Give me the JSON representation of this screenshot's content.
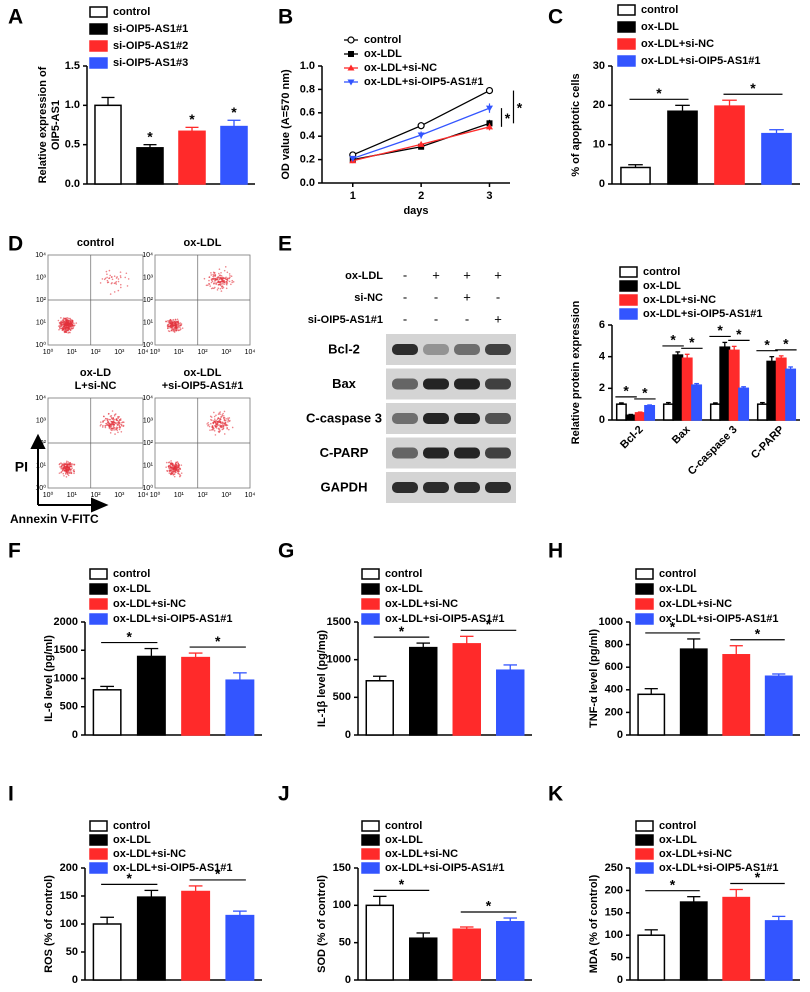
{
  "chart_data": [
    {
      "letter": "A",
      "type": "bar",
      "y_label": [
        "Relative expression of",
        "OIP5-AS1"
      ],
      "ylim": [
        0,
        1.5
      ],
      "yticks": [
        {
          "value": 0,
          "label": "0.0"
        },
        {
          "value": 0.5,
          "label": "0.5"
        },
        {
          "value": 1,
          "label": "1.0"
        },
        {
          "value": 1.5,
          "label": "1.5"
        }
      ],
      "series": [
        {
          "name": "control",
          "color": "#ffffff",
          "values": [
            1.0
          ],
          "errors": [
            0.1
          ]
        },
        {
          "name": "si-OIP5-AS1#1",
          "color": "#000000",
          "values": [
            0.46
          ],
          "errors": [
            0.04
          ]
        },
        {
          "name": "si-OIP5-AS1#2",
          "color": "#ff2a2a",
          "values": [
            0.67
          ],
          "errors": [
            0.05
          ]
        },
        {
          "name": "si-OIP5-AS1#3",
          "color": "#3355ff",
          "values": [
            0.73
          ],
          "errors": [
            0.08
          ]
        }
      ],
      "comparisons": [
        {
          "label": "*",
          "between": [
            "si-OIP5-AS1#1"
          ]
        },
        {
          "label": "*",
          "between": [
            "si-OIP5-AS1#2"
          ]
        },
        {
          "label": "*",
          "between": [
            "si-OIP5-AS1#3"
          ]
        }
      ]
    },
    {
      "letter": "B",
      "type": "line",
      "y_label": [
        "OD value (A=570 nm)"
      ],
      "x_label": "days",
      "x": [
        1,
        2,
        3
      ],
      "xlim": [
        0.55,
        3.3
      ],
      "xticks": [
        1,
        2,
        3
      ],
      "ylim": [
        0,
        1.0
      ],
      "yticks": [
        {
          "value": 0,
          "label": "0.0"
        },
        {
          "value": 0.2,
          "label": "0.2"
        },
        {
          "value": 0.4,
          "label": "0.4"
        },
        {
          "value": 0.6,
          "label": "0.6"
        },
        {
          "value": 0.8,
          "label": "0.8"
        },
        {
          "value": 1,
          "label": "1.0"
        }
      ],
      "series": [
        {
          "name": "control",
          "color": "#000000",
          "marker": "circle-open",
          "values": [
            0.24,
            0.49,
            0.79
          ],
          "errors": [
            0.02,
            0.03,
            0.03
          ]
        },
        {
          "name": "ox-LDL",
          "color": "#000000",
          "marker": "square",
          "values": [
            0.2,
            0.31,
            0.51
          ],
          "errors": [
            0.02,
            0.02,
            0.03
          ]
        },
        {
          "name": "ox-LDL+si-NC",
          "color": "#ff2a2a",
          "marker": "triangle",
          "values": [
            0.19,
            0.33,
            0.48
          ],
          "errors": [
            0.02,
            0.02,
            0.03
          ]
        },
        {
          "name": "ox-LDL+si-OIP5-AS1#1",
          "color": "#3355ff",
          "marker": "triangle-down",
          "values": [
            0.21,
            0.41,
            0.64
          ],
          "errors": [
            0.02,
            0.03,
            0.04
          ]
        }
      ],
      "comparisons": [
        {
          "label": "*",
          "between": [
            "ox-LDL+si-NC",
            "ox-LDL+si-OIP5-AS1#1"
          ]
        },
        {
          "label": "*",
          "between": [
            "ox-LDL",
            "control"
          ]
        }
      ]
    },
    {
      "letter": "C",
      "type": "bar",
      "y_label": [
        "% of apoptotic cells"
      ],
      "ylim": [
        0,
        30
      ],
      "yticks": [
        0,
        10,
        20,
        30
      ],
      "series": [
        {
          "name": "control",
          "color": "#ffffff",
          "values": [
            4.2
          ],
          "errors": [
            0.7
          ]
        },
        {
          "name": "ox-LDL",
          "color": "#000000",
          "values": [
            18.5
          ],
          "errors": [
            1.5
          ]
        },
        {
          "name": "ox-LDL+si-NC",
          "color": "#ff2a2a",
          "values": [
            19.8
          ],
          "errors": [
            1.5
          ]
        },
        {
          "name": "ox-LDL+si-OIP5-AS1#1",
          "color": "#3355ff",
          "values": [
            12.8
          ],
          "errors": [
            1.0
          ]
        }
      ],
      "comparisons": [
        {
          "label": "*",
          "between": [
            "control",
            "ox-LDL"
          ]
        },
        {
          "label": "*",
          "between": [
            "ox-LDL+si-NC",
            "ox-LDL+si-OIP5-AS1#1"
          ]
        }
      ]
    },
    {
      "letter": null,
      "type": "bar",
      "y_label": [
        "Relative protein expression"
      ],
      "ylim": [
        0,
        6
      ],
      "yticks": [
        0,
        2,
        4,
        6
      ],
      "categories": [
        "Bcl-2",
        "Bax",
        "C-caspase 3",
        "C-PARP"
      ],
      "series": [
        {
          "name": "control",
          "color": "#ffffff",
          "values": [
            1.0,
            1.0,
            1.0,
            1.0
          ],
          "errors": [
            0.08,
            0.1,
            0.08,
            0.1
          ]
        },
        {
          "name": "ox-LDL",
          "color": "#000000",
          "values": [
            0.3,
            4.1,
            4.6,
            3.7
          ],
          "errors": [
            0.05,
            0.2,
            0.3,
            0.3
          ]
        },
        {
          "name": "ox-LDL+si-NC",
          "color": "#ff2a2a",
          "values": [
            0.45,
            3.9,
            4.4,
            3.9
          ],
          "errors": [
            0.05,
            0.25,
            0.25,
            0.15
          ]
        },
        {
          "name": "ox-LDL+si-OIP5-AS1#1",
          "color": "#3355ff",
          "values": [
            0.9,
            2.2,
            2.0,
            3.2
          ],
          "errors": [
            0.05,
            0.1,
            0.1,
            0.15
          ]
        }
      ],
      "comparisons": [
        {
          "label": "*",
          "category": "Bcl-2",
          "between": [
            "control",
            "ox-LDL"
          ]
        },
        {
          "label": "*",
          "category": "Bcl-2",
          "between": [
            "ox-LDL+si-NC",
            "ox-LDL+si-OIP5-AS1#1"
          ]
        },
        {
          "label": "*",
          "category": "Bax",
          "between": [
            "control",
            "ox-LDL"
          ]
        },
        {
          "label": "*",
          "category": "Bax",
          "between": [
            "ox-LDL+si-NC",
            "ox-LDL+si-OIP5-AS1#1"
          ]
        },
        {
          "label": "*",
          "category": "C-caspase 3",
          "between": [
            "control",
            "ox-LDL"
          ]
        },
        {
          "label": "*",
          "category": "C-caspase 3",
          "between": [
            "ox-LDL+si-NC",
            "ox-LDL+si-OIP5-AS1#1"
          ]
        },
        {
          "label": "*",
          "category": "C-PARP",
          "between": [
            "control",
            "ox-LDL"
          ]
        },
        {
          "label": "*",
          "category": "C-PARP",
          "between": [
            "ox-LDL+si-NC",
            "ox-LDL+si-OIP5-AS1#1"
          ]
        }
      ]
    },
    {
      "letter": "F",
      "type": "bar",
      "y_label": [
        "IL-6 level (pg/ml)"
      ],
      "ylim": [
        0,
        2000
      ],
      "yticks": [
        0,
        500,
        1000,
        1500,
        2000
      ],
      "series": [
        {
          "name": "control",
          "color": "#ffffff",
          "values": [
            800
          ],
          "errors": [
            60
          ]
        },
        {
          "name": "ox-LDL",
          "color": "#000000",
          "values": [
            1390
          ],
          "errors": [
            140
          ]
        },
        {
          "name": "ox-LDL+si-NC",
          "color": "#ff2a2a",
          "values": [
            1370
          ],
          "errors": [
            80
          ]
        },
        {
          "name": "ox-LDL+si-OIP5-AS1#1",
          "color": "#3355ff",
          "values": [
            970
          ],
          "errors": [
            130
          ]
        }
      ],
      "comparisons": [
        {
          "label": "*",
          "between": [
            "control",
            "ox-LDL"
          ]
        },
        {
          "label": "*",
          "between": [
            "ox-LDL+si-NC",
            "ox-LDL+si-OIP5-AS1#1"
          ]
        }
      ]
    },
    {
      "letter": "G",
      "type": "bar",
      "y_label": [
        "IL-1β level (pg/mg)"
      ],
      "ylim": [
        0,
        1500
      ],
      "yticks": [
        0,
        500,
        1000,
        1500
      ],
      "series": [
        {
          "name": "control",
          "color": "#ffffff",
          "values": [
            720
          ],
          "errors": [
            60
          ]
        },
        {
          "name": "ox-LDL",
          "color": "#000000",
          "values": [
            1160
          ],
          "errors": [
            60
          ]
        },
        {
          "name": "ox-LDL+si-NC",
          "color": "#ff2a2a",
          "values": [
            1210
          ],
          "errors": [
            100
          ]
        },
        {
          "name": "ox-LDL+si-OIP5-AS1#1",
          "color": "#3355ff",
          "values": [
            860
          ],
          "errors": [
            70
          ]
        }
      ],
      "comparisons": [
        {
          "label": "*",
          "between": [
            "control",
            "ox-LDL"
          ]
        },
        {
          "label": "*",
          "between": [
            "ox-LDL+si-NC",
            "ox-LDL+si-OIP5-AS1#1"
          ]
        }
      ]
    },
    {
      "letter": "H",
      "type": "bar",
      "y_label": [
        "TNF-α level (pg/ml)"
      ],
      "ylim": [
        0,
        1000
      ],
      "yticks": [
        0,
        200,
        400,
        600,
        800,
        1000
      ],
      "series": [
        {
          "name": "control",
          "color": "#ffffff",
          "values": [
            360
          ],
          "errors": [
            50
          ]
        },
        {
          "name": "ox-LDL",
          "color": "#000000",
          "values": [
            760
          ],
          "errors": [
            90
          ]
        },
        {
          "name": "ox-LDL+si-NC",
          "color": "#ff2a2a",
          "values": [
            710
          ],
          "errors": [
            80
          ]
        },
        {
          "name": "ox-LDL+si-OIP5-AS1#1",
          "color": "#3355ff",
          "values": [
            520
          ],
          "errors": [
            20
          ]
        }
      ],
      "comparisons": [
        {
          "label": "*",
          "between": [
            "control",
            "ox-LDL"
          ]
        },
        {
          "label": "*",
          "between": [
            "ox-LDL+si-NC",
            "ox-LDL+si-OIP5-AS1#1"
          ]
        }
      ]
    },
    {
      "letter": "I",
      "type": "bar",
      "y_label": [
        "ROS (% of control)"
      ],
      "ylim": [
        0,
        200
      ],
      "yticks": [
        0,
        50,
        100,
        150,
        200
      ],
      "series": [
        {
          "name": "control",
          "color": "#ffffff",
          "values": [
            100
          ],
          "errors": [
            12
          ]
        },
        {
          "name": "ox-LDL",
          "color": "#000000",
          "values": [
            148
          ],
          "errors": [
            12
          ]
        },
        {
          "name": "ox-LDL+si-NC",
          "color": "#ff2a2a",
          "values": [
            158
          ],
          "errors": [
            10
          ]
        },
        {
          "name": "ox-LDL+si-OIP5-AS1#1",
          "color": "#3355ff",
          "values": [
            115
          ],
          "errors": [
            8
          ]
        }
      ],
      "comparisons": [
        {
          "label": "*",
          "between": [
            "control",
            "ox-LDL"
          ]
        },
        {
          "label": "*",
          "between": [
            "ox-LDL+si-NC",
            "ox-LDL+si-OIP5-AS1#1"
          ]
        }
      ]
    },
    {
      "letter": "J",
      "type": "bar",
      "y_label": [
        "SOD (% of control)"
      ],
      "ylim": [
        0,
        150
      ],
      "yticks": [
        0,
        50,
        100,
        150
      ],
      "series": [
        {
          "name": "control",
          "color": "#ffffff",
          "values": [
            100
          ],
          "errors": [
            12
          ]
        },
        {
          "name": "ox-LDL",
          "color": "#000000",
          "values": [
            56
          ],
          "errors": [
            7
          ]
        },
        {
          "name": "ox-LDL+si-NC",
          "color": "#ff2a2a",
          "values": [
            68
          ],
          "errors": [
            3
          ]
        },
        {
          "name": "ox-LDL+si-OIP5-AS1#1",
          "color": "#3355ff",
          "values": [
            78
          ],
          "errors": [
            5
          ]
        }
      ],
      "comparisons": [
        {
          "label": "*",
          "between": [
            "control",
            "ox-LDL"
          ]
        },
        {
          "label": "*",
          "between": [
            "ox-LDL+si-NC",
            "ox-LDL+si-OIP5-AS1#1"
          ]
        }
      ]
    },
    {
      "letter": "K",
      "type": "bar",
      "y_label": [
        "MDA (% of control)"
      ],
      "ylim": [
        0,
        250
      ],
      "yticks": [
        0,
        50,
        100,
        150,
        200,
        250
      ],
      "series": [
        {
          "name": "control",
          "color": "#ffffff",
          "values": [
            100
          ],
          "errors": [
            12
          ]
        },
        {
          "name": "ox-LDL",
          "color": "#000000",
          "values": [
            174
          ],
          "errors": [
            12
          ]
        },
        {
          "name": "ox-LDL+si-NC",
          "color": "#ff2a2a",
          "values": [
            184
          ],
          "errors": [
            18
          ]
        },
        {
          "name": "ox-LDL+si-OIP5-AS1#1",
          "color": "#3355ff",
          "values": [
            132
          ],
          "errors": [
            10
          ]
        }
      ],
      "comparisons": [
        {
          "label": "*",
          "between": [
            "control",
            "ox-LDL"
          ]
        },
        {
          "label": "*",
          "between": [
            "ox-LDL+si-NC",
            "ox-LDL+si-OIP5-AS1#1"
          ]
        }
      ]
    }
  ],
  "flow": {
    "letter": "D",
    "x_label": "Annexin V-FITC",
    "y_label": "PI",
    "ticks": [
      "10⁰",
      "10¹",
      "10²",
      "10³",
      "10⁴"
    ],
    "plots": [
      {
        "title": [
          "control"
        ]
      },
      {
        "title": [
          "ox-LDL"
        ]
      },
      {
        "title": [
          "ox-LD",
          "L+si-NC"
        ]
      },
      {
        "title": [
          "ox-LDL",
          "+si-OIP5-AS1#1"
        ]
      }
    ]
  },
  "blot": {
    "letter": "E",
    "conditions": [
      {
        "label": "ox-LDL",
        "signs": [
          "-",
          "+",
          "+",
          "+"
        ]
      },
      {
        "label": "si-NC",
        "signs": [
          "-",
          "-",
          "+",
          "-"
        ]
      },
      {
        "label": "si-OIP5-AS1#1",
        "signs": [
          "-",
          "-",
          "-",
          "+"
        ]
      }
    ],
    "bands": [
      "Bcl-2",
      "Bax",
      "C-caspase 3",
      "C-PARP",
      "GAPDH"
    ]
  }
}
